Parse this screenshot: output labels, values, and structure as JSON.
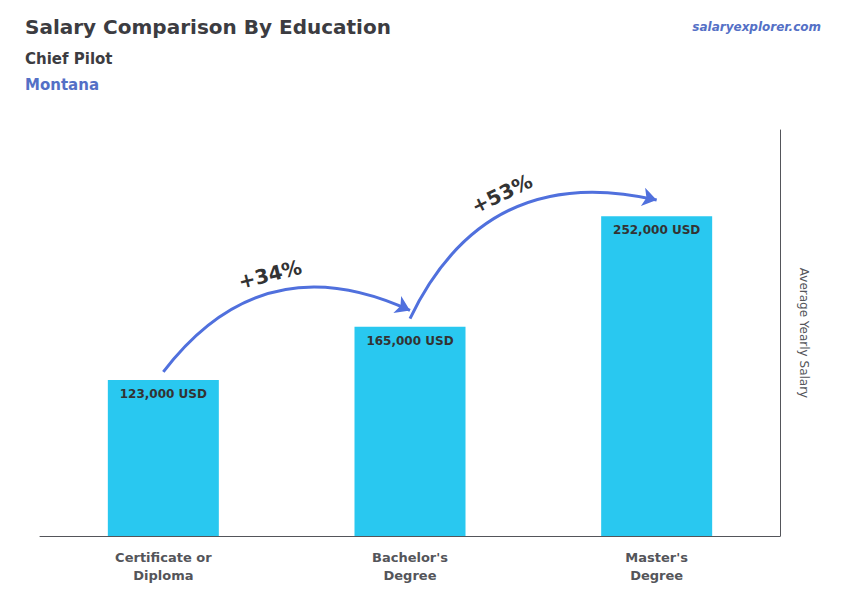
{
  "chart_data": {
    "type": "bar",
    "title": "Salary Comparison By Education",
    "subtitle": "Chief Pilot",
    "location": "Montana",
    "source": "salaryexplorer.com",
    "categories": [
      "Certificate or\nDiploma",
      "Bachelor's\nDegree",
      "Master's\nDegree"
    ],
    "values": [
      123000,
      165000,
      252000
    ],
    "value_labels": [
      "123,000 USD",
      "165,000 USD",
      "252,000 USD"
    ],
    "data_labels": true,
    "annotations": [
      "+34%",
      "+53%"
    ],
    "ylabel": "Average Yearly Salary",
    "color": "#29c8f0",
    "ylim": [
      0,
      320000
    ],
    "tick_labels": false,
    "grid": false
  }
}
